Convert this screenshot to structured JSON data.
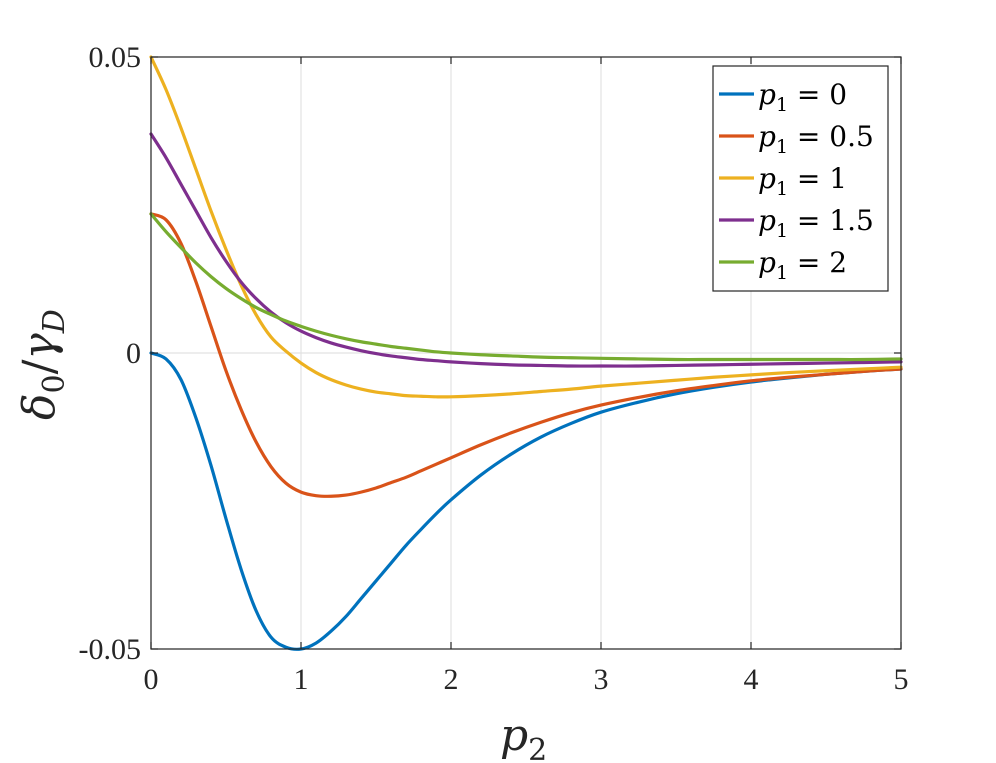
{
  "chart_data": {
    "type": "line",
    "xlabel": "p",
    "xlabel_sub": "2",
    "ylabel_delta": "δ",
    "ylabel_delta_sub": "0",
    "ylabel_slash": "/",
    "ylabel_gamma": "γ",
    "ylabel_gamma_sub": "D",
    "xlim": [
      0,
      5
    ],
    "ylim": [
      -0.05,
      0.05
    ],
    "xticks": [
      0,
      1,
      2,
      3,
      4,
      5
    ],
    "xtick_labels": [
      "0",
      "1",
      "2",
      "3",
      "4",
      "5"
    ],
    "yticks": [
      -0.05,
      0,
      0.05
    ],
    "ytick_labels": [
      "-0.05",
      "0",
      "0.05"
    ],
    "grid": true,
    "legend_position": "top-right",
    "x": [
      0,
      0.1,
      0.2,
      0.3,
      0.4,
      0.5,
      0.6,
      0.7,
      0.8,
      0.9,
      1.0,
      1.1,
      1.2,
      1.3,
      1.4,
      1.5,
      1.6,
      1.7,
      1.8,
      1.9,
      2.0,
      2.2,
      2.4,
      2.6,
      2.8,
      3.0,
      3.25,
      3.5,
      3.75,
      4.0,
      4.25,
      4.5,
      4.75,
      5.0
    ],
    "series": [
      {
        "name": "p₁ = 0",
        "legend_var": "p",
        "legend_sub": "1",
        "legend_rest": " = 0",
        "color": "#0072BD",
        "values": [
          0,
          -0.001,
          -0.0045,
          -0.011,
          -0.019,
          -0.028,
          -0.0365,
          -0.0435,
          -0.048,
          -0.0497,
          -0.05,
          -0.049,
          -0.047,
          -0.0445,
          -0.0415,
          -0.0385,
          -0.0355,
          -0.0325,
          -0.0298,
          -0.0272,
          -0.0248,
          -0.0206,
          -0.0171,
          -0.0142,
          -0.0119,
          -0.01,
          -0.0083,
          -0.0069,
          -0.0058,
          -0.0049,
          -0.0042,
          -0.0036,
          -0.0031,
          -0.0027
        ]
      },
      {
        "name": "p₁ = 0.5",
        "legend_var": "p",
        "legend_sub": "1",
        "legend_rest": " = 0.5",
        "color": "#D95319",
        "values": [
          0.0235,
          0.0225,
          0.0185,
          0.012,
          0.0045,
          -0.003,
          -0.0095,
          -0.015,
          -0.0192,
          -0.022,
          -0.0235,
          -0.0241,
          -0.0242,
          -0.024,
          -0.0235,
          -0.0228,
          -0.0219,
          -0.021,
          -0.0199,
          -0.0188,
          -0.0177,
          -0.0155,
          -0.0135,
          -0.0117,
          -0.0101,
          -0.0088,
          -0.0075,
          -0.0064,
          -0.0055,
          -0.0047,
          -0.0041,
          -0.0036,
          -0.0031,
          -0.0027
        ]
      },
      {
        "name": "p₁ = 1",
        "legend_var": "p",
        "legend_sub": "1",
        "legend_rest": " = 1",
        "color": "#EDB120",
        "values": [
          0.05,
          0.0445,
          0.038,
          0.031,
          0.024,
          0.0175,
          0.0115,
          0.0065,
          0.0027,
          0.0003,
          -0.0017,
          -0.0033,
          -0.0045,
          -0.0054,
          -0.0061,
          -0.0066,
          -0.0069,
          -0.0072,
          -0.0073,
          -0.0074,
          -0.0074,
          -0.0072,
          -0.0069,
          -0.0065,
          -0.0061,
          -0.0056,
          -0.0051,
          -0.0046,
          -0.0041,
          -0.0037,
          -0.0033,
          -0.003,
          -0.0027,
          -0.0024
        ]
      },
      {
        "name": "p₁ = 1.5",
        "legend_var": "p",
        "legend_sub": "1",
        "legend_rest": " = 1.5",
        "color": "#7E2F8E",
        "values": [
          0.037,
          0.033,
          0.0285,
          0.024,
          0.0195,
          0.0155,
          0.012,
          0.0092,
          0.0069,
          0.0051,
          0.0037,
          0.0026,
          0.0017,
          0.001,
          0.0004,
          -0.0001,
          -0.0005,
          -0.0008,
          -0.0011,
          -0.0013,
          -0.0015,
          -0.0018,
          -0.002,
          -0.0021,
          -0.0022,
          -0.0022,
          -0.0022,
          -0.0021,
          -0.002,
          -0.0019,
          -0.0018,
          -0.0017,
          -0.0016,
          -0.0015
        ]
      },
      {
        "name": "p₁ = 2",
        "legend_var": "p",
        "legend_sub": "1",
        "legend_rest": " = 2",
        "color": "#77AC30",
        "values": [
          0.0235,
          0.0205,
          0.0178,
          0.0152,
          0.0129,
          0.0109,
          0.0092,
          0.0077,
          0.0065,
          0.0054,
          0.0045,
          0.0037,
          0.003,
          0.0024,
          0.0019,
          0.0015,
          0.0011,
          0.0008,
          0.0005,
          0.0002,
          0.0,
          -0.0003,
          -0.0005,
          -0.0007,
          -0.0008,
          -0.0009,
          -0.001,
          -0.0011,
          -0.0011,
          -0.0011,
          -0.0011,
          -0.0011,
          -0.0011,
          -0.001
        ]
      }
    ]
  }
}
